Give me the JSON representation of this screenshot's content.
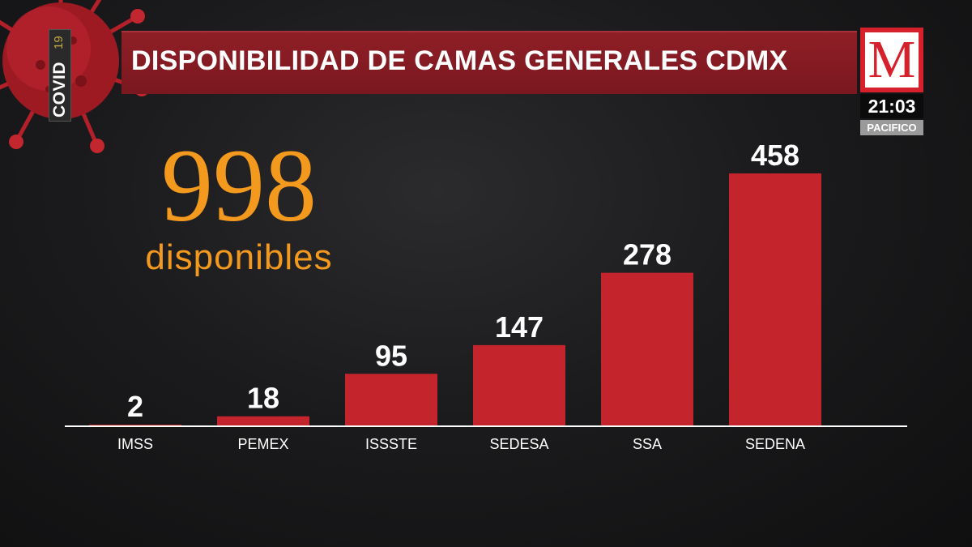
{
  "tag": {
    "word": "COVID",
    "number": "19"
  },
  "header": {
    "title": "DISPONIBILIDAD DE CAMAS GENERALES CDMX"
  },
  "brand": {
    "logo_letter": "M",
    "time": "21:03",
    "zone": "PACIFICO"
  },
  "summary": {
    "total": "998",
    "caption": "disponibles"
  },
  "colors": {
    "bar": "#c4252d",
    "accent": "#f39a1e",
    "brand_red": "#d6202b",
    "title_bar": "#8a1c24"
  },
  "chart_data": {
    "type": "bar",
    "title": "DISPONIBILIDAD DE CAMAS GENERALES CDMX",
    "xlabel": "",
    "ylabel": "",
    "categories": [
      "IMSS",
      "PEMEX",
      "ISSSTE",
      "SEDESA",
      "SSA",
      "SEDENA"
    ],
    "values": [
      2,
      18,
      95,
      147,
      278,
      458
    ],
    "ylim": [
      0,
      458
    ],
    "grid": false,
    "legend": "none"
  }
}
